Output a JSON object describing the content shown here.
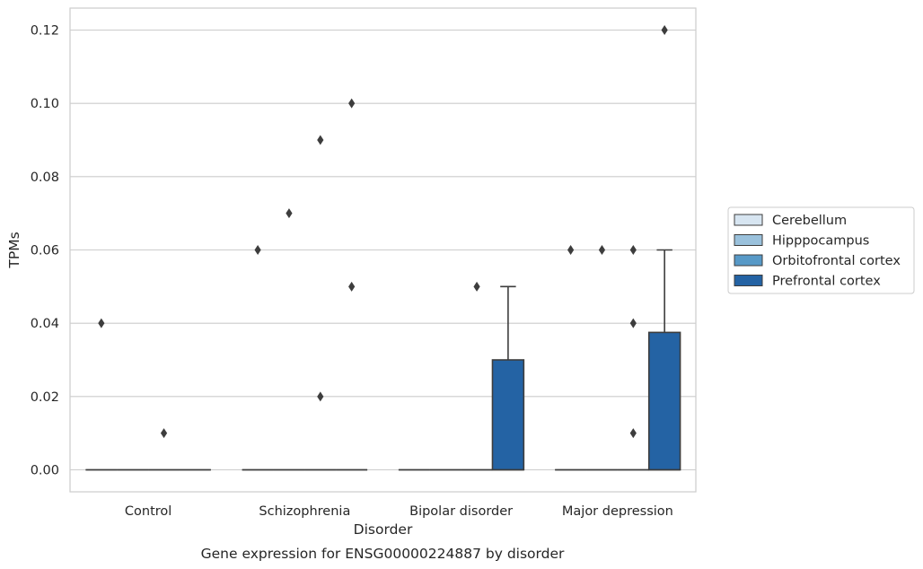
{
  "chart_data": {
    "type": "box",
    "xlabel": "Disorder",
    "ylabel": "TPMs",
    "caption": "Gene expression for ENSG00000224887 by disorder",
    "categories": [
      "Control",
      "Schizophrenia",
      "Bipolar disorder",
      "Major depression"
    ],
    "ylim": [
      -0.006,
      0.126
    ],
    "yticks": [
      0.0,
      0.02,
      0.04,
      0.06,
      0.08,
      0.1,
      0.12
    ],
    "ytick_labels": [
      "0.00",
      "0.02",
      "0.04",
      "0.06",
      "0.08",
      "0.10",
      "0.12"
    ],
    "grid": true,
    "legend_position": "right",
    "series": [
      {
        "name": "Cerebellum",
        "color": "#d7e5f1",
        "boxes": [
          {
            "min": 0,
            "q1": 0,
            "median": 0,
            "q3": 0,
            "max": 0,
            "outliers": [
              0.04
            ]
          },
          {
            "min": 0,
            "q1": 0,
            "median": 0,
            "q3": 0,
            "max": 0,
            "outliers": [
              0.06
            ]
          },
          {
            "min": 0,
            "q1": 0,
            "median": 0,
            "q3": 0,
            "max": 0,
            "outliers": []
          },
          {
            "min": 0,
            "q1": 0,
            "median": 0,
            "q3": 0,
            "max": 0,
            "outliers": [
              0.06
            ]
          }
        ]
      },
      {
        "name": "Hipppocampus",
        "color": "#9ac1dc",
        "boxes": [
          {
            "min": 0,
            "q1": 0,
            "median": 0,
            "q3": 0,
            "max": 0,
            "outliers": []
          },
          {
            "min": 0,
            "q1": 0,
            "median": 0,
            "q3": 0,
            "max": 0,
            "outliers": [
              0.07
            ]
          },
          {
            "min": 0,
            "q1": 0,
            "median": 0,
            "q3": 0,
            "max": 0,
            "outliers": []
          },
          {
            "min": 0,
            "q1": 0,
            "median": 0,
            "q3": 0,
            "max": 0,
            "outliers": [
              0.06
            ]
          }
        ]
      },
      {
        "name": "Orbitofrontal cortex",
        "color": "#5799c7",
        "boxes": [
          {
            "min": 0,
            "q1": 0,
            "median": 0,
            "q3": 0,
            "max": 0,
            "outliers": [
              0.01
            ]
          },
          {
            "min": 0,
            "q1": 0,
            "median": 0,
            "q3": 0,
            "max": 0,
            "outliers": [
              0.09,
              0.02
            ]
          },
          {
            "min": 0,
            "q1": 0,
            "median": 0,
            "q3": 0,
            "max": 0,
            "outliers": [
              0.05
            ]
          },
          {
            "min": 0,
            "q1": 0,
            "median": 0,
            "q3": 0,
            "max": 0,
            "outliers": [
              0.06,
              0.04,
              0.01
            ]
          }
        ]
      },
      {
        "name": "Prefrontal cortex",
        "color": "#2463a4",
        "boxes": [
          {
            "min": 0,
            "q1": 0,
            "median": 0,
            "q3": 0,
            "max": 0,
            "outliers": []
          },
          {
            "min": 0,
            "q1": 0,
            "median": 0,
            "q3": 0,
            "max": 0,
            "outliers": [
              0.1,
              0.05
            ]
          },
          {
            "min": 0,
            "q1": 0,
            "median": 0,
            "q3": 0.03,
            "max": 0.05,
            "outliers": []
          },
          {
            "min": 0,
            "q1": 0,
            "median": 0,
            "q3": 0.0375,
            "max": 0.06,
            "outliers": [
              0.12
            ]
          }
        ]
      }
    ]
  }
}
